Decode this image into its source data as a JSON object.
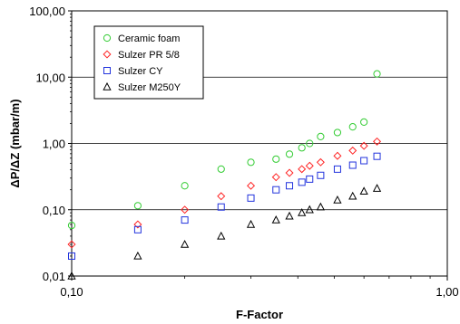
{
  "chart_data": {
    "type": "scatter",
    "xlabel": "F-Factor",
    "ylabel": "ΔP/ΔZ (mbar/m)",
    "x_scale": "log",
    "y_scale": "log",
    "xlim": [
      0.1,
      1.0
    ],
    "ylim": [
      0.01,
      100
    ],
    "x_ticks": [
      {
        "value": 0.1,
        "label": "0,10"
      },
      {
        "value": 1.0,
        "label": "1,00"
      }
    ],
    "y_ticks": [
      {
        "value": 0.01,
        "label": "0,01"
      },
      {
        "value": 0.1,
        "label": "0,10"
      },
      {
        "value": 1,
        "label": "1,00"
      },
      {
        "value": 10,
        "label": "10,00"
      },
      {
        "value": 100,
        "label": "100,00"
      }
    ],
    "grid": {
      "major_y": true,
      "x": false
    },
    "legend_position": "top-left",
    "series": [
      {
        "name": "Ceramic foam",
        "marker": "circle",
        "color": "#33cc33",
        "points": [
          [
            0.1,
            0.058
          ],
          [
            0.15,
            0.115
          ],
          [
            0.2,
            0.23
          ],
          [
            0.25,
            0.41
          ],
          [
            0.3,
            0.52
          ],
          [
            0.35,
            0.58
          ],
          [
            0.38,
            0.69
          ],
          [
            0.41,
            0.86
          ],
          [
            0.43,
            1.0
          ],
          [
            0.46,
            1.27
          ],
          [
            0.51,
            1.46
          ],
          [
            0.56,
            1.78
          ],
          [
            0.6,
            2.1
          ],
          [
            0.65,
            11.2
          ]
        ]
      },
      {
        "name": "Sulzer PR 5/8",
        "marker": "diamond",
        "color": "#ff2222",
        "points": [
          [
            0.1,
            0.03
          ],
          [
            0.15,
            0.06
          ],
          [
            0.2,
            0.1
          ],
          [
            0.25,
            0.16
          ],
          [
            0.3,
            0.23
          ],
          [
            0.35,
            0.31
          ],
          [
            0.38,
            0.36
          ],
          [
            0.41,
            0.41
          ],
          [
            0.43,
            0.46
          ],
          [
            0.46,
            0.52
          ],
          [
            0.51,
            0.65
          ],
          [
            0.56,
            0.78
          ],
          [
            0.6,
            0.92
          ],
          [
            0.65,
            1.07
          ]
        ]
      },
      {
        "name": "Sulzer CY",
        "marker": "square",
        "color": "#2233dd",
        "points": [
          [
            0.1,
            0.02
          ],
          [
            0.15,
            0.05
          ],
          [
            0.2,
            0.07
          ],
          [
            0.25,
            0.11
          ],
          [
            0.3,
            0.15
          ],
          [
            0.35,
            0.2
          ],
          [
            0.38,
            0.23
          ],
          [
            0.41,
            0.26
          ],
          [
            0.43,
            0.29
          ],
          [
            0.46,
            0.33
          ],
          [
            0.51,
            0.41
          ],
          [
            0.56,
            0.47
          ],
          [
            0.6,
            0.55
          ],
          [
            0.65,
            0.64
          ]
        ]
      },
      {
        "name": "Sulzer M250Y",
        "marker": "triangle",
        "color": "#000000",
        "points": [
          [
            0.1,
            0.01
          ],
          [
            0.15,
            0.02
          ],
          [
            0.2,
            0.03
          ],
          [
            0.25,
            0.04
          ],
          [
            0.3,
            0.06
          ],
          [
            0.35,
            0.07
          ],
          [
            0.38,
            0.08
          ],
          [
            0.41,
            0.09
          ],
          [
            0.43,
            0.1
          ],
          [
            0.46,
            0.11
          ],
          [
            0.51,
            0.14
          ],
          [
            0.56,
            0.16
          ],
          [
            0.6,
            0.19
          ],
          [
            0.65,
            0.21
          ]
        ]
      }
    ]
  }
}
